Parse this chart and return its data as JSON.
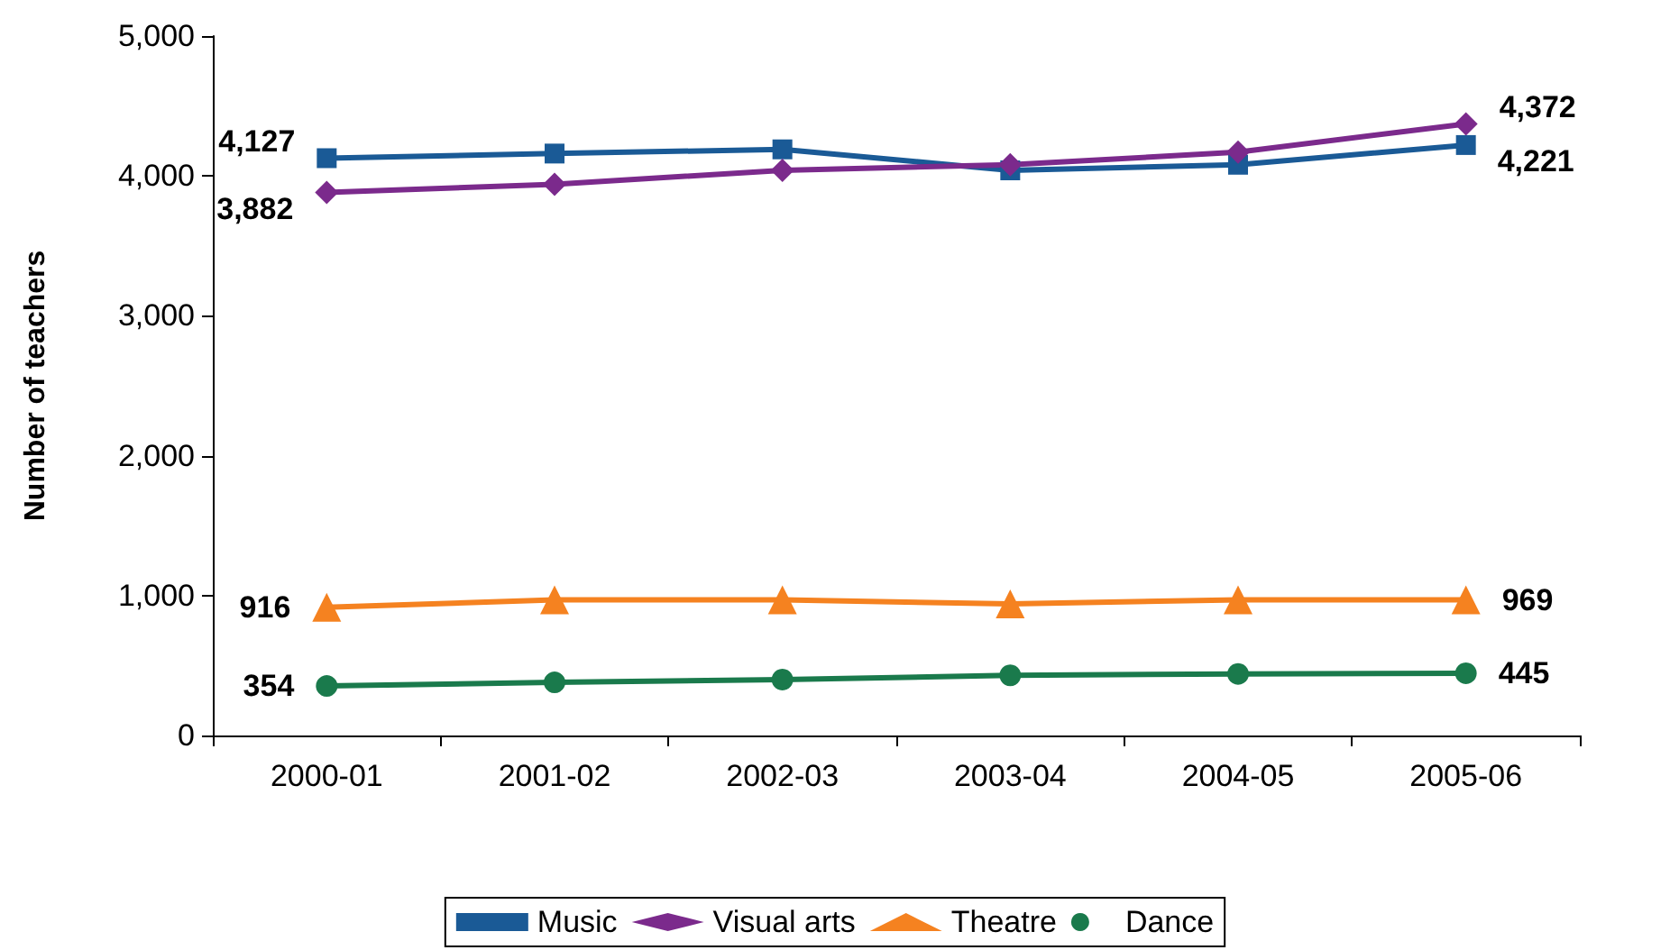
{
  "chart_data": {
    "type": "line",
    "ylabel": "Number of teachers",
    "categories": [
      "2000-01",
      "2001-02",
      "2002-03",
      "2003-04",
      "2004-05",
      "2005-06"
    ],
    "series": [
      {
        "name": "Music",
        "color": "#1a5a96",
        "marker": "square",
        "values": [
          4127,
          4160,
          4190,
          4040,
          4080,
          4221
        ],
        "value_labels": [
          "4,127",
          null,
          null,
          null,
          null,
          "4,221"
        ]
      },
      {
        "name": "Visual arts",
        "color": "#7b2a8c",
        "marker": "diamond",
        "values": [
          3882,
          3940,
          4040,
          4080,
          4170,
          4372
        ],
        "value_labels": [
          "3,882",
          null,
          null,
          null,
          null,
          "4,372"
        ]
      },
      {
        "name": "Theatre",
        "color": "#f58220",
        "marker": "triangle",
        "values": [
          916,
          970,
          970,
          940,
          970,
          969
        ],
        "value_labels": [
          "916",
          null,
          null,
          null,
          null,
          "969"
        ]
      },
      {
        "name": "Dance",
        "color": "#1a7a4c",
        "marker": "circle",
        "values": [
          354,
          380,
          400,
          430,
          440,
          445
        ],
        "value_labels": [
          "354",
          null,
          null,
          null,
          null,
          "445"
        ]
      }
    ],
    "ylim": [
      0,
      5000
    ],
    "yticks": [
      {
        "value": 0,
        "label": "0"
      },
      {
        "value": 1000,
        "label": "1,000"
      },
      {
        "value": 2000,
        "label": "2,000"
      },
      {
        "value": 3000,
        "label": "3,000"
      },
      {
        "value": 4000,
        "label": "4,000"
      },
      {
        "value": 5000,
        "label": "5,000"
      }
    ],
    "grid": false,
    "legend": "bottom",
    "line_style": "solid"
  }
}
